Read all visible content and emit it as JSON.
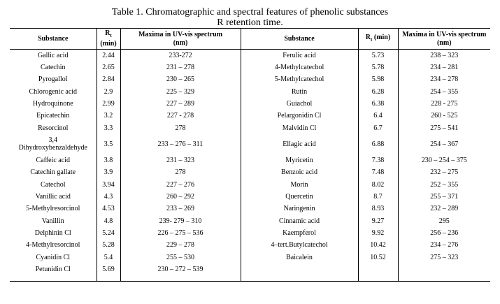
{
  "caption": {
    "line1": "Table 1. Chromatographic and spectral features of phenolic substances",
    "line2": "R  retention time."
  },
  "headers": {
    "substance": "Substance",
    "rt_main": "R",
    "rt_sub": "t",
    "rt_unit": "(min)",
    "maxima_line1": "Maxima in UV-vis spectrum",
    "maxima_line2": "(nm)"
  },
  "left": [
    {
      "substance": "Gallic acid",
      "rt": "2.44",
      "maxima": "233-272"
    },
    {
      "substance": "Catechin",
      "rt": "2.65",
      "maxima": "231 – 278"
    },
    {
      "substance": "Pyrogallol",
      "rt": "2.84",
      "maxima": "230 – 265"
    },
    {
      "substance": "Chlorogenic acid",
      "rt": "2.9",
      "maxima": "225 – 329"
    },
    {
      "substance": "Hydroquinone",
      "rt": "2.99",
      "maxima": "227 – 289"
    },
    {
      "substance": "Epicatechin",
      "rt": "3.2",
      "maxima": "227 -  278"
    },
    {
      "substance": "Resorcinol",
      "rt": "3.3",
      "maxima": "278"
    },
    {
      "substance": "3,4\nDihydroxybenzaldehyde",
      "rt": "3.5",
      "maxima": "233 – 276 – 311"
    },
    {
      "substance": "Caffeic acid",
      "rt": "3.8",
      "maxima": "231 – 323"
    },
    {
      "substance": "Catechin gallate",
      "rt": "3.9",
      "maxima": "278"
    },
    {
      "substance": "Catechol",
      "rt": "3.94",
      "maxima": "227 – 276"
    },
    {
      "substance": "Vanillic acid",
      "rt": "4.3",
      "maxima": "260 – 292"
    },
    {
      "substance": "5-Methylresorcinol",
      "rt": "4.53",
      "maxima": "233 – 269"
    },
    {
      "substance": "Vanillin",
      "rt": "4.8",
      "maxima": "239- 279 – 310"
    },
    {
      "substance": "Delphinin Cl",
      "rt": "5.24",
      "maxima": "226 – 275 – 536"
    },
    {
      "substance": "4-Methylresorcinol",
      "rt": "5.28",
      "maxima": "229 – 278"
    },
    {
      "substance": "Cyanidin Cl",
      "rt": "5.4",
      "maxima": "255 – 530"
    },
    {
      "substance": "Petunidin Cl",
      "rt": "5.69",
      "maxima": "230 – 272 – 539"
    }
  ],
  "right": [
    {
      "substance": "Ferulic acid",
      "rt": "5.73",
      "maxima": "238 – 323"
    },
    {
      "substance": "4-Methylcatechol",
      "rt": "5.78",
      "maxima": "234 – 281"
    },
    {
      "substance": "5-Methylcatechol",
      "rt": "5.98",
      "maxima": "234 – 278"
    },
    {
      "substance": "Rutin",
      "rt": "6.28",
      "maxima": "254 – 355"
    },
    {
      "substance": "Guiachol",
      "rt": "6.38",
      "maxima": "228 - 275"
    },
    {
      "substance": "Pelargonidin Cl",
      "rt": "6.4",
      "maxima": "260 - 525"
    },
    {
      "substance": "Malvidin Cl",
      "rt": "6.7",
      "maxima": "275 – 541"
    },
    {
      "substance": "Ellagic acid",
      "rt": "6.88",
      "maxima": "254 – 367"
    },
    {
      "substance": "Myricetin",
      "rt": "7.38",
      "maxima": "230 – 254 – 375"
    },
    {
      "substance": "Benzoic acid",
      "rt": "7.48",
      "maxima": "232 – 275"
    },
    {
      "substance": "Morin",
      "rt": "8.02",
      "maxima": "252 – 355"
    },
    {
      "substance": "Quercetin",
      "rt": "8.7",
      "maxima": "255 – 371"
    },
    {
      "substance": "Naringenin",
      "rt": "8.93",
      "maxima": "232 – 289"
    },
    {
      "substance": "Cinnamic acid",
      "rt": "9.27",
      "maxima": "295"
    },
    {
      "substance": "Kaempferol",
      "rt": "9.92",
      "maxima": "256 – 236"
    },
    {
      "substance": "4–tert.Butylcatechol",
      "rt": "10.42",
      "maxima": "234 – 276"
    },
    {
      "substance": "Baicalein",
      "rt": "10.52",
      "maxima": "275 – 323"
    },
    {
      "substance": "",
      "rt": "",
      "maxima": ""
    }
  ]
}
